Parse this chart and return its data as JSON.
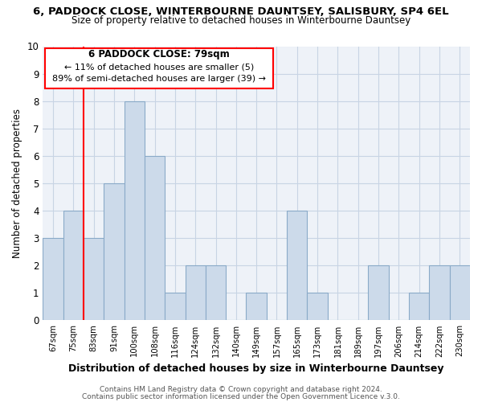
{
  "title_line1": "6, PADDOCK CLOSE, WINTERBOURNE DAUNTSEY, SALISBURY, SP4 6EL",
  "title_line2": "Size of property relative to detached houses in Winterbourne Dauntsey",
  "xlabel": "Distribution of detached houses by size in Winterbourne Dauntsey",
  "ylabel": "Number of detached properties",
  "categories": [
    "67sqm",
    "75sqm",
    "83sqm",
    "91sqm",
    "100sqm",
    "108sqm",
    "116sqm",
    "124sqm",
    "132sqm",
    "140sqm",
    "149sqm",
    "157sqm",
    "165sqm",
    "173sqm",
    "181sqm",
    "189sqm",
    "197sqm",
    "206sqm",
    "214sqm",
    "222sqm",
    "230sqm"
  ],
  "values": [
    3,
    4,
    3,
    5,
    8,
    6,
    1,
    2,
    2,
    0,
    1,
    0,
    4,
    1,
    0,
    0,
    2,
    0,
    1,
    2,
    2
  ],
  "bar_color": "#ccdaea",
  "bar_edge_color": "#8aaac8",
  "red_line_x": 1.5,
  "ylim": [
    0,
    10
  ],
  "yticks": [
    0,
    1,
    2,
    3,
    4,
    5,
    6,
    7,
    8,
    9,
    10
  ],
  "annotation_title": "6 PADDOCK CLOSE: 79sqm",
  "annotation_line1": "← 11% of detached houses are smaller (5)",
  "annotation_line2": "89% of semi-detached houses are larger (39) →",
  "footer_line1": "Contains HM Land Registry data © Crown copyright and database right 2024.",
  "footer_line2": "Contains public sector information licensed under the Open Government Licence v.3.0.",
  "grid_color": "#c8d4e4",
  "background_color": "#eef2f8"
}
